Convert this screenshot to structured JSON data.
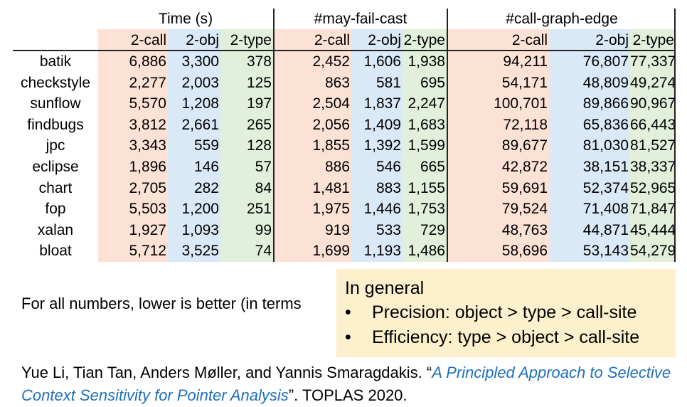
{
  "table": {
    "group_headers": [
      "Time (s)",
      "#may-fail-cast",
      "#call-graph-edge"
    ],
    "sub_headers": [
      "2-call",
      "2-obj",
      "2-type",
      "2-call",
      "2-obj",
      "2-type",
      "2-call",
      "2-obj",
      "2-type"
    ],
    "rows": [
      {
        "bench": "batik",
        "v": [
          "6,886",
          "3,300",
          "378",
          "2,452",
          "1,606",
          "1,938",
          "94,211",
          "76,807",
          "77,337"
        ]
      },
      {
        "bench": "checkstyle",
        "v": [
          "2,277",
          "2,003",
          "125",
          "863",
          "581",
          "695",
          "54,171",
          "48,809",
          "49,274"
        ]
      },
      {
        "bench": "sunflow",
        "v": [
          "5,570",
          "1,208",
          "197",
          "2,504",
          "1,837",
          "2,247",
          "100,701",
          "89,866",
          "90,967"
        ]
      },
      {
        "bench": "findbugs",
        "v": [
          "3,812",
          "2,661",
          "265",
          "2,056",
          "1,409",
          "1,683",
          "72,118",
          "65,836",
          "66,443"
        ]
      },
      {
        "bench": "jpc",
        "v": [
          "3,343",
          "559",
          "128",
          "1,855",
          "1,392",
          "1,599",
          "89,677",
          "81,030",
          "81,527"
        ]
      },
      {
        "bench": "eclipse",
        "v": [
          "1,896",
          "146",
          "57",
          "886",
          "546",
          "665",
          "42,872",
          "38,151",
          "38,337"
        ]
      },
      {
        "bench": "chart",
        "v": [
          "2,705",
          "282",
          "84",
          "1,481",
          "883",
          "1,155",
          "59,691",
          "52,374",
          "52,965"
        ]
      },
      {
        "bench": "fop",
        "v": [
          "5,503",
          "1,200",
          "251",
          "1,975",
          "1,446",
          "1,753",
          "79,524",
          "71,408",
          "71,847"
        ]
      },
      {
        "bench": "xalan",
        "v": [
          "1,927",
          "1,093",
          "99",
          "919",
          "533",
          "729",
          "48,763",
          "44,871",
          "45,444"
        ]
      },
      {
        "bench": "bloat",
        "v": [
          "5,712",
          "3,525",
          "74",
          "1,699",
          "1,193",
          "1,486",
          "58,696",
          "53,143",
          "54,279"
        ]
      }
    ],
    "colors": {
      "call": "#fbe2d5",
      "obj": "#dae9f8",
      "type": "#e2efda"
    }
  },
  "note": "For all numbers, lower is better (in terms",
  "callout": {
    "heading": "In general",
    "bullet_symbol": "•",
    "items": [
      "Precision: object > type > call-site",
      "Efficiency: type > object > call-site"
    ],
    "background": "#fdf0cc"
  },
  "citation": {
    "authors": "Yue Li, Tian Tan, Anders Møller, and Yannis Smaragdakis. “",
    "link_text": "A Principled Approach to Selective Context Sensitivity for Pointer Analysis",
    "tail": "”. TOPLAS 2020.",
    "link_color": "#1f6fbf"
  }
}
